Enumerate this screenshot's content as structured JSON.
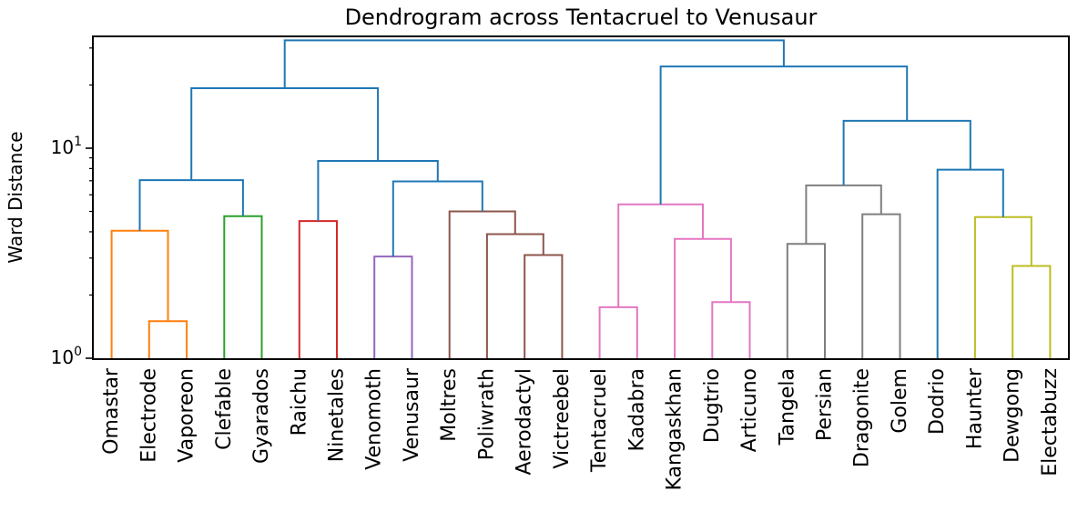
{
  "chart_data": {
    "type": "dendrogram",
    "title": "Dendrogram across Tentacruel to Venusaur",
    "ylabel": "Ward Distance",
    "grid": false,
    "y_axis": {
      "scale": "log",
      "lim": [
        1,
        34
      ],
      "major_ticks": [
        {
          "value": 1,
          "label": "10⁰",
          "base": "10",
          "exp": "0"
        },
        {
          "value": 10,
          "label": "10¹",
          "base": "10",
          "exp": "1"
        }
      ],
      "minor_ticks": [
        2,
        3,
        4,
        5,
        6,
        7,
        8,
        9,
        20,
        30
      ]
    },
    "leaves": [
      "Omastar",
      "Electrode",
      "Vaporeon",
      "Clefable",
      "Gyarados",
      "Raichu",
      "Ninetales",
      "Venomoth",
      "Venusaur",
      "Moltres",
      "Poliwrath",
      "Aerodactyl",
      "Victreebel",
      "Tentacruel",
      "Kadabra",
      "Kangaskhan",
      "Dugtrio",
      "Articuno",
      "Tangela",
      "Persian",
      "Dragonite",
      "Golem",
      "Dodrio",
      "Haunter",
      "Dewgong",
      "Electabuzz"
    ],
    "palette": {
      "above_threshold_blue": "#1f77b4",
      "orange": "#ff7f0e",
      "green": "#2ca02c",
      "red": "#d62728",
      "purple": "#9467bd",
      "brown": "#8c564b",
      "pink": "#e377c2",
      "gray": "#7f7f7f",
      "olive": "#bcbd22"
    },
    "merges": [
      {
        "id": "m0",
        "children": [
          "Electrode",
          "Vaporeon"
        ],
        "height": 1.5,
        "color": "#ff7f0e"
      },
      {
        "id": "m1",
        "children": [
          "Omastar",
          "m0"
        ],
        "height": 4.05,
        "color": "#ff7f0e"
      },
      {
        "id": "m2",
        "children": [
          "Clefable",
          "Gyarados"
        ],
        "height": 4.75,
        "color": "#2ca02c"
      },
      {
        "id": "m3",
        "children": [
          "Raichu",
          "Ninetales"
        ],
        "height": 4.5,
        "color": "#d62728"
      },
      {
        "id": "m4",
        "children": [
          "Venomoth",
          "Venusaur"
        ],
        "height": 3.05,
        "color": "#9467bd"
      },
      {
        "id": "m5",
        "children": [
          "Aerodactyl",
          "Victreebel"
        ],
        "height": 3.1,
        "color": "#8c564b"
      },
      {
        "id": "m6",
        "children": [
          "Poliwrath",
          "m5"
        ],
        "height": 3.9,
        "color": "#8c564b"
      },
      {
        "id": "m7",
        "children": [
          "Moltres",
          "m6"
        ],
        "height": 5.0,
        "color": "#8c564b"
      },
      {
        "id": "m8",
        "children": [
          "Tentacruel",
          "Kadabra"
        ],
        "height": 1.75,
        "color": "#e377c2"
      },
      {
        "id": "m9",
        "children": [
          "Dugtrio",
          "Articuno"
        ],
        "height": 1.85,
        "color": "#e377c2"
      },
      {
        "id": "m10",
        "children": [
          "Kangaskhan",
          "m9"
        ],
        "height": 3.7,
        "color": "#e377c2"
      },
      {
        "id": "m11",
        "children": [
          "m8",
          "m10"
        ],
        "height": 5.4,
        "color": "#e377c2"
      },
      {
        "id": "m12",
        "children": [
          "Tangela",
          "Persian"
        ],
        "height": 3.5,
        "color": "#7f7f7f"
      },
      {
        "id": "m13",
        "children": [
          "Dragonite",
          "Golem"
        ],
        "height": 4.85,
        "color": "#7f7f7f"
      },
      {
        "id": "m14",
        "children": [
          "Dewgong",
          "Electabuzz"
        ],
        "height": 2.75,
        "color": "#bcbd22"
      },
      {
        "id": "m15",
        "children": [
          "Haunter",
          "m14"
        ],
        "height": 4.7,
        "color": "#bcbd22"
      },
      {
        "id": "m16",
        "children": [
          "m1",
          "m2"
        ],
        "height": 7.05,
        "color": "#1f77b4"
      },
      {
        "id": "m17",
        "children": [
          "m4",
          "m7"
        ],
        "height": 6.95,
        "color": "#1f77b4"
      },
      {
        "id": "m18",
        "children": [
          "m3",
          "m17"
        ],
        "height": 8.7,
        "color": "#1f77b4"
      },
      {
        "id": "m19",
        "children": [
          "m16",
          "m18"
        ],
        "height": 19.3,
        "color": "#1f77b4"
      },
      {
        "id": "m20",
        "children": [
          "Dodrio",
          "m15"
        ],
        "height": 7.9,
        "color": "#1f77b4"
      },
      {
        "id": "m21",
        "children": [
          "m12",
          "m13"
        ],
        "height": 6.65,
        "color": "#7f7f7f"
      },
      {
        "id": "m22",
        "children": [
          "m21",
          "m20"
        ],
        "height": 13.5,
        "color": "#1f77b4"
      },
      {
        "id": "m23",
        "children": [
          "m11",
          "m22"
        ],
        "height": 24.5,
        "color": "#1f77b4"
      },
      {
        "id": "m24",
        "children": [
          "m19",
          "m23"
        ],
        "height": 32.6,
        "color": "#1f77b4"
      }
    ]
  }
}
